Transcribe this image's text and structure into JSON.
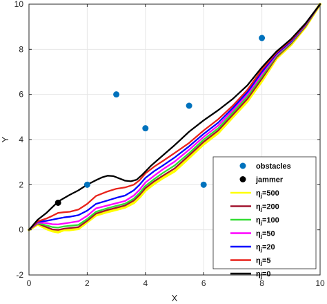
{
  "chart_data": {
    "type": "line",
    "xlabel": "X",
    "ylabel": "Y",
    "xlim": [
      0,
      10
    ],
    "ylim": [
      -2,
      10
    ],
    "xticks": [
      0,
      2,
      4,
      6,
      8,
      10
    ],
    "yticks": [
      -2,
      0,
      2,
      4,
      6,
      8,
      10
    ],
    "grid": true,
    "legend_position": "bottom-right",
    "obstacles": {
      "name": "obstacles",
      "color": "#0072BD",
      "points": [
        [
          2,
          2
        ],
        [
          3,
          6
        ],
        [
          4,
          4.5
        ],
        [
          5.5,
          5.5
        ],
        [
          6,
          2
        ],
        [
          8,
          8.5
        ]
      ]
    },
    "jammer": {
      "name": "jammer",
      "color": "#000000",
      "points": [
        [
          1,
          1.2
        ]
      ]
    },
    "series": [
      {
        "symbol": "η",
        "subscript": "j",
        "suffix": "=500",
        "color": "#FFFF00",
        "x": [
          0,
          0.3,
          0.6,
          0.8,
          1.0,
          1.2,
          1.4,
          1.7,
          2.0,
          2.3,
          2.7,
          3.0,
          3.3,
          3.6,
          3.8,
          4.0,
          4.3,
          4.6,
          5.0,
          5.5,
          6.0,
          6.5,
          7.0,
          7.5,
          8.0,
          8.5,
          9.0,
          9.5,
          10.0
        ],
        "y": [
          0,
          0.25,
          0.05,
          -0.05,
          -0.1,
          0.0,
          0.0,
          0.05,
          0.35,
          0.65,
          0.8,
          0.9,
          1.0,
          1.2,
          1.45,
          1.75,
          2.05,
          2.3,
          2.6,
          3.2,
          3.8,
          4.3,
          5.0,
          5.7,
          6.6,
          7.6,
          8.2,
          9.0,
          10.0
        ]
      },
      {
        "symbol": "η",
        "subscript": "j",
        "suffix": "=200",
        "color": "#A2142F",
        "x": [
          0,
          0.3,
          0.6,
          0.8,
          1.0,
          1.2,
          1.4,
          1.7,
          2.0,
          2.3,
          2.7,
          3.0,
          3.3,
          3.6,
          3.8,
          4.0,
          4.3,
          4.6,
          5.0,
          5.5,
          6.0,
          6.5,
          7.0,
          7.5,
          8.0,
          8.5,
          9.0,
          9.5,
          10.0
        ],
        "y": [
          0,
          0.28,
          0.12,
          0.02,
          0.0,
          0.05,
          0.08,
          0.12,
          0.4,
          0.72,
          0.88,
          0.98,
          1.08,
          1.3,
          1.55,
          1.85,
          2.15,
          2.4,
          2.72,
          3.3,
          3.9,
          4.4,
          5.1,
          5.8,
          6.7,
          7.65,
          8.25,
          9.02,
          10.0
        ]
      },
      {
        "symbol": "η",
        "subscript": "j",
        "suffix": "=100",
        "color": "#33DD33",
        "x": [
          0,
          0.3,
          0.6,
          0.8,
          1.0,
          1.2,
          1.4,
          1.7,
          2.0,
          2.3,
          2.7,
          3.0,
          3.3,
          3.6,
          3.8,
          4.0,
          4.3,
          4.6,
          5.0,
          5.5,
          6.0,
          6.5,
          7.0,
          7.5,
          8.0,
          8.5,
          9.0,
          9.5,
          10.0
        ],
        "y": [
          0,
          0.3,
          0.2,
          0.12,
          0.1,
          0.15,
          0.18,
          0.22,
          0.48,
          0.8,
          0.96,
          1.06,
          1.16,
          1.38,
          1.64,
          1.95,
          2.25,
          2.52,
          2.85,
          3.4,
          4.0,
          4.5,
          5.2,
          5.9,
          6.8,
          7.7,
          8.28,
          9.05,
          10.0
        ]
      },
      {
        "symbol": "η",
        "subscript": "j",
        "suffix": "=50",
        "color": "#FF00FF",
        "x": [
          0,
          0.3,
          0.6,
          0.8,
          1.0,
          1.2,
          1.4,
          1.7,
          2.0,
          2.3,
          2.7,
          3.0,
          3.3,
          3.6,
          3.8,
          4.0,
          4.3,
          4.6,
          5.0,
          5.5,
          6.0,
          6.5,
          7.0,
          7.5,
          8.0,
          8.5,
          9.0,
          9.5,
          10.0
        ],
        "y": [
          0,
          0.32,
          0.3,
          0.25,
          0.24,
          0.28,
          0.32,
          0.38,
          0.62,
          0.95,
          1.08,
          1.18,
          1.28,
          1.52,
          1.78,
          2.1,
          2.4,
          2.68,
          3.02,
          3.55,
          4.12,
          4.62,
          5.3,
          6.0,
          6.9,
          7.75,
          8.32,
          9.08,
          10.0
        ]
      },
      {
        "symbol": "η",
        "subscript": "j",
        "suffix": "=20",
        "color": "#0000FF",
        "x": [
          0,
          0.3,
          0.6,
          0.8,
          1.0,
          1.2,
          1.4,
          1.7,
          2.0,
          2.3,
          2.7,
          3.0,
          3.3,
          3.6,
          3.8,
          4.0,
          4.3,
          4.6,
          5.0,
          5.5,
          6.0,
          6.5,
          7.0,
          7.5,
          8.0,
          8.5,
          9.0,
          9.5,
          10.0
        ],
        "y": [
          0,
          0.35,
          0.4,
          0.45,
          0.5,
          0.55,
          0.58,
          0.65,
          0.85,
          1.15,
          1.3,
          1.42,
          1.52,
          1.75,
          2.0,
          2.3,
          2.6,
          2.85,
          3.2,
          3.7,
          4.25,
          4.75,
          5.4,
          6.1,
          7.0,
          7.8,
          8.35,
          9.1,
          10.0
        ]
      },
      {
        "symbol": "η",
        "subscript": "j",
        "suffix": "=5",
        "color": "#E8221A",
        "x": [
          0,
          0.3,
          0.6,
          0.8,
          1.0,
          1.2,
          1.4,
          1.7,
          2.0,
          2.3,
          2.7,
          3.0,
          3.3,
          3.6,
          3.8,
          4.0,
          4.3,
          4.6,
          5.0,
          5.5,
          6.0,
          6.5,
          7.0,
          7.5,
          8.0,
          8.5,
          9.0,
          9.5,
          10.0
        ],
        "y": [
          0,
          0.38,
          0.5,
          0.62,
          0.75,
          0.78,
          0.8,
          0.9,
          1.15,
          1.5,
          1.7,
          1.82,
          1.88,
          2.0,
          2.2,
          2.5,
          2.8,
          3.05,
          3.4,
          3.85,
          4.4,
          4.9,
          5.5,
          6.2,
          7.1,
          7.85,
          8.4,
          9.12,
          10.0
        ]
      },
      {
        "symbol": "η",
        "subscript": "j",
        "suffix": "=0",
        "color": "#000000",
        "x": [
          0,
          0.3,
          0.6,
          0.8,
          1.0,
          1.2,
          1.4,
          1.7,
          2.0,
          2.3,
          2.5,
          2.7,
          2.9,
          3.1,
          3.3,
          3.5,
          3.7,
          3.9,
          4.2,
          4.6,
          5.0,
          5.5,
          6.0,
          6.5,
          7.0,
          7.5,
          8.0,
          8.5,
          9.0,
          9.5,
          10.0
        ],
        "y": [
          0,
          0.45,
          0.75,
          1.0,
          1.25,
          1.4,
          1.55,
          1.75,
          2.0,
          2.2,
          2.32,
          2.4,
          2.38,
          2.28,
          2.18,
          2.15,
          2.22,
          2.45,
          2.85,
          3.3,
          3.75,
          4.35,
          4.85,
          5.3,
          5.8,
          6.4,
          7.2,
          7.9,
          8.45,
          9.15,
          10.0
        ]
      }
    ]
  }
}
